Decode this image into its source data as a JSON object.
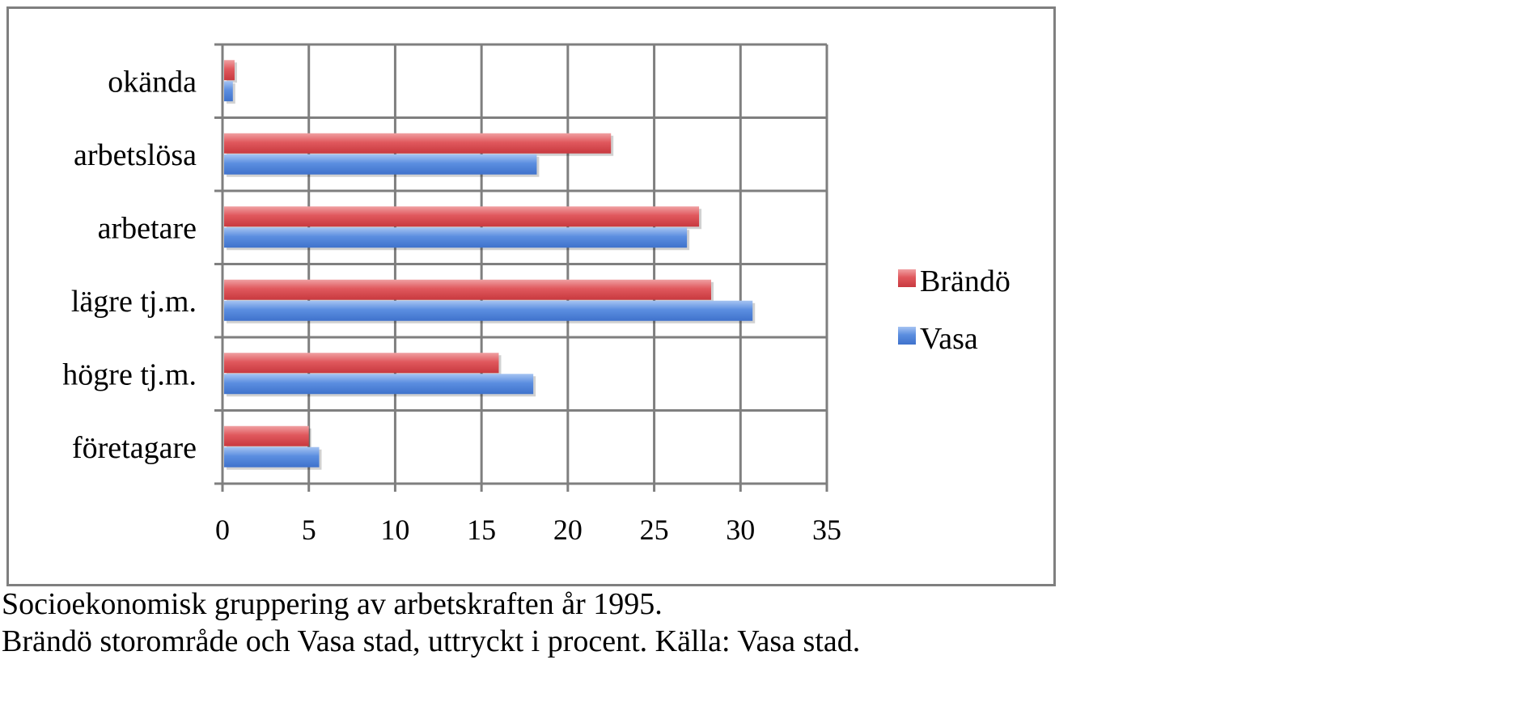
{
  "chart_data": {
    "type": "bar",
    "orientation": "horizontal",
    "categories": [
      "företagare",
      "högre tj.m.",
      "lägre tj.m.",
      "arbetare",
      "arbetslösa",
      "okända"
    ],
    "series": [
      {
        "name": "Brändö",
        "color": "#e05a5f",
        "values": [
          5.0,
          16.0,
          28.3,
          27.6,
          22.5,
          0.7
        ]
      },
      {
        "name": "Vasa",
        "color": "#5b8ee0",
        "values": [
          5.6,
          18.0,
          30.7,
          26.9,
          18.2,
          0.6
        ]
      }
    ],
    "x_ticks": [
      "0",
      "5",
      "10",
      "15",
      "20",
      "25",
      "30",
      "35"
    ],
    "xlim": [
      0,
      35
    ],
    "grid": true,
    "legend_position": "right"
  },
  "caption": {
    "line1": "Socioekonomisk gruppering av arbetskraften år 1995.",
    "line2": "Brändö storområde och Vasa stad, uttryckt i procent. Källa: Vasa stad."
  }
}
